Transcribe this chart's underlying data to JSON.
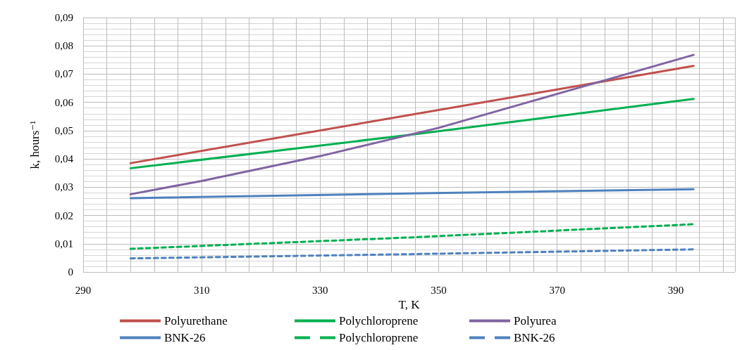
{
  "chart_data": {
    "type": "line",
    "xlabel": "T, K",
    "ylabel": "k, hours⁻¹",
    "xlim": [
      290,
      400
    ],
    "xticks": [
      290,
      310,
      330,
      350,
      370,
      390
    ],
    "ylim": [
      0,
      0.09
    ],
    "yticks": [
      {
        "value": 0,
        "label": "0"
      },
      {
        "value": 0.01,
        "label": "0,01"
      },
      {
        "value": 0.02,
        "label": "0,02"
      },
      {
        "value": 0.03,
        "label": "0,03"
      },
      {
        "value": 0.04,
        "label": "0,04"
      },
      {
        "value": 0.05,
        "label": "0,05"
      },
      {
        "value": 0.06,
        "label": "0,06"
      },
      {
        "value": 0.07,
        "label": "0,07"
      },
      {
        "value": 0.08,
        "label": "0,08"
      },
      {
        "value": 0.09,
        "label": "0,09"
      }
    ],
    "grid": true,
    "legend": "bottom",
    "marker": "none",
    "series": [
      {
        "name": "Polyurethane",
        "color": "#c0504d",
        "line_style": "solid",
        "x": [
          298,
          345,
          393
        ],
        "values": [
          0.0385,
          0.0555,
          0.0729
        ]
      },
      {
        "name": "Polychloroprene",
        "color": "#00b050",
        "line_style": "solid",
        "x": [
          298,
          345,
          393
        ],
        "values": [
          0.0367,
          0.0485,
          0.0612
        ]
      },
      {
        "name": "Polyurea",
        "color": "#8064a2",
        "line_style": "solid",
        "x": [
          298,
          310,
          330,
          350,
          370,
          393
        ],
        "values": [
          0.0275,
          0.0322,
          0.041,
          0.051,
          0.063,
          0.0768
        ]
      },
      {
        "name": "BNK-26",
        "color": "#4f81bd",
        "line_style": "solid",
        "x": [
          298,
          345,
          393
        ],
        "values": [
          0.0261,
          0.0278,
          0.0293
        ]
      },
      {
        "name": "Polychloroprene",
        "color": "#00b050",
        "line_style": "dashed",
        "x": [
          298,
          345,
          393
        ],
        "values": [
          0.0082,
          0.0122,
          0.0169
        ]
      },
      {
        "name": "BNK-26",
        "color": "#4f81bd",
        "line_style": "dashed",
        "x": [
          298,
          345,
          393
        ],
        "values": [
          0.0048,
          0.0063,
          0.008
        ]
      }
    ]
  }
}
